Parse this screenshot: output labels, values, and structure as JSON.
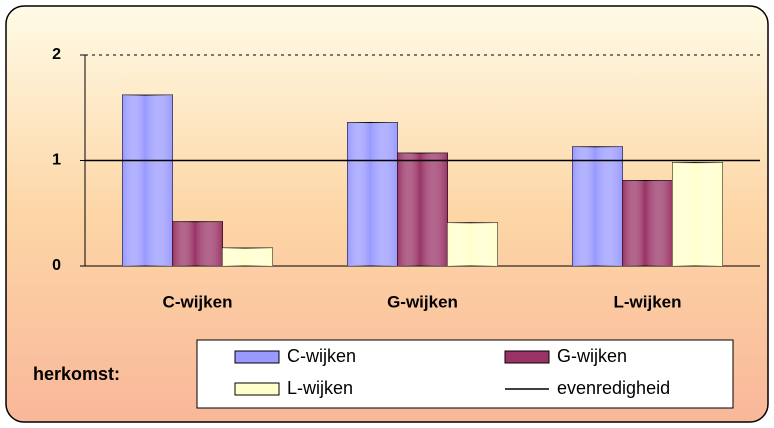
{
  "chart_data": {
    "type": "bar",
    "categories": [
      "C-wijken",
      "G-wijken",
      "L-wijken"
    ],
    "series": [
      {
        "name": "C-wijken",
        "color": "#9999ff",
        "values": [
          1.62,
          1.36,
          1.13
        ]
      },
      {
        "name": "G-wijken",
        "color": "#993366",
        "values": [
          0.42,
          1.07,
          0.81
        ]
      },
      {
        "name": "L-wijken",
        "color": "#ffffcc",
        "values": [
          0.17,
          0.41,
          0.98
        ]
      }
    ],
    "reference_line": {
      "name": "evenredigheid",
      "value": 1,
      "color": "#000000"
    },
    "legend_title": "herkomst:",
    "ylim": [
      0,
      2
    ],
    "yticks": [
      0,
      1,
      2
    ],
    "grid": true
  }
}
